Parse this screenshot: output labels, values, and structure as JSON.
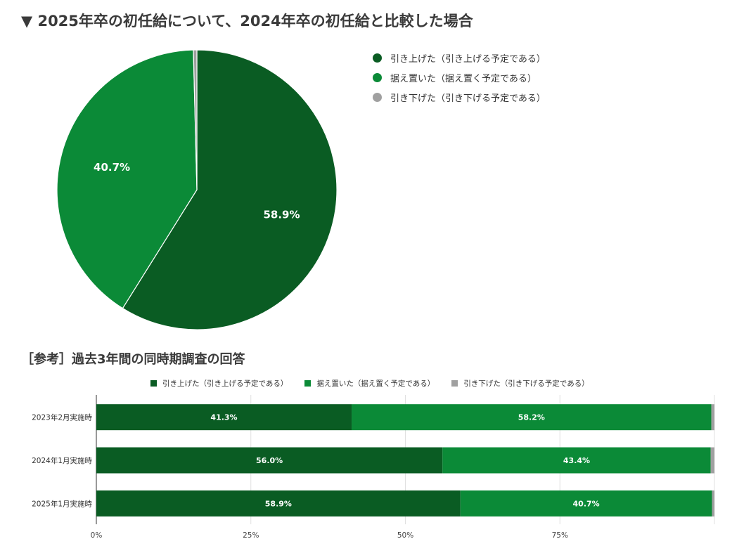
{
  "header": {
    "title": "▼ 2025年卒の初任給について、2024年卒の初任給と比較した場合",
    "subtitle": "［参考］過去3年間の同時期調査の回答"
  },
  "colors": {
    "raised": "#0a5c23",
    "kept": "#0b8a37",
    "lowered": "#a0a0a0"
  },
  "chart_data": [
    {
      "type": "pie",
      "title": "▼ 2025年卒の初任給について、2024年卒の初任給と比較した場合",
      "legend_position": "right",
      "slices": [
        {
          "label": "引き上げた（引き上げる予定である）",
          "value": 58.9,
          "data_label": "58.9%",
          "color": "#0a5c23"
        },
        {
          "label": "据え置いた（据え置く予定である）",
          "value": 40.7,
          "data_label": "40.7%",
          "color": "#0b8a37"
        },
        {
          "label": "引き下げた（引き下げる予定である）",
          "value": 0.4,
          "data_label": "",
          "color": "#a0a0a0"
        }
      ]
    },
    {
      "type": "bar",
      "orientation": "horizontal",
      "stacked": true,
      "title": "［参考］過去3年間の同時期調査の回答",
      "legend_position": "top",
      "categories": [
        "2023年2月実施時",
        "2024年1月実施時",
        "2025年1月実施時"
      ],
      "series": [
        {
          "name": "引き上げた（引き上げる予定である）",
          "values": [
            41.3,
            56.0,
            58.9
          ],
          "labels": [
            "41.3%",
            "56.0%",
            "58.9%"
          ],
          "color": "#0a5c23"
        },
        {
          "name": "据え置いた（据え置く予定である）",
          "values": [
            58.2,
            43.4,
            40.7
          ],
          "labels": [
            "58.2%",
            "43.4%",
            "40.7%"
          ],
          "color": "#0b8a37"
        },
        {
          "name": "引き下げた（引き下げる予定である）",
          "values": [
            0.5,
            0.6,
            0.4
          ],
          "labels": [
            "",
            "",
            ""
          ],
          "color": "#a0a0a0"
        }
      ],
      "xlim": [
        0,
        100
      ],
      "x_ticks": [
        "0%",
        "25%",
        "50%",
        "75%"
      ],
      "grid": true
    }
  ]
}
